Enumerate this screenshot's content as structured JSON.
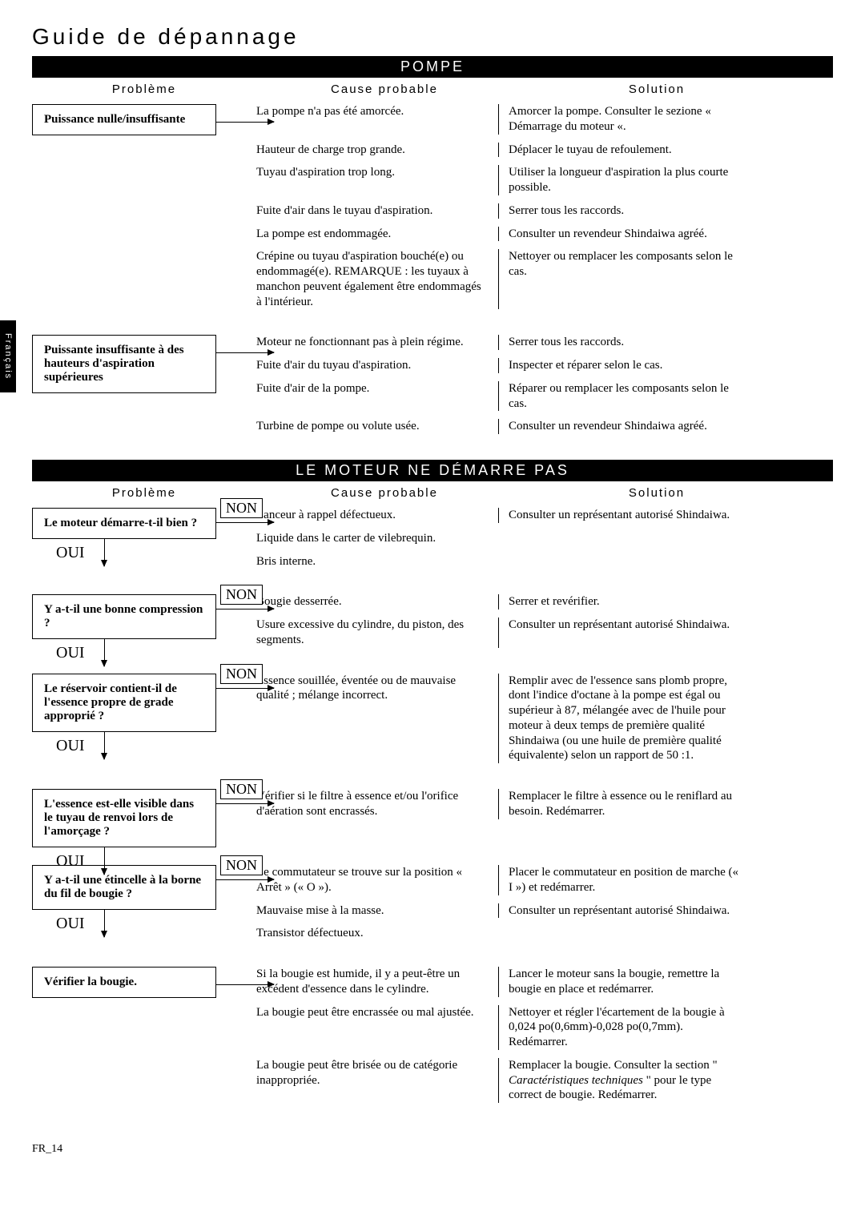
{
  "title": "Guide de dépannage",
  "sideTab": "Français",
  "footer": "FR_14",
  "labels": {
    "oui": "OUI",
    "non": "NON"
  },
  "headers": {
    "problem": "Problème",
    "cause": "Cause probable",
    "solution": "Solution"
  },
  "sections": [
    {
      "title": "POMPE",
      "groups": [
        {
          "problem": "Puissance nulle/insuffisante",
          "flow": false,
          "rows": [
            {
              "cause": "La pompe n'a pas été amorcée.",
              "solution": "Amorcer la pompe. Consulter le sezione « Démarrage du moteur «."
            },
            {
              "cause": "Hauteur de charge trop grande.",
              "solution": "Déplacer le tuyau de refoulement."
            },
            {
              "cause": "Tuyau d'aspiration trop long.",
              "solution": "Utiliser la longueur d'aspiration la plus courte possible."
            },
            {
              "cause": "Fuite d'air dans le tuyau d'aspiration.",
              "solution": "Serrer tous les raccords."
            },
            {
              "cause": "La pompe est endommagée.",
              "solution": "Consulter un revendeur Shindaiwa agréé."
            },
            {
              "cause": "Crépine ou tuyau d'aspiration bouché(e) ou endommagé(e). REMARQUE : les tuyaux à manchon peuvent également être endommagés à l'intérieur.",
              "solution": "Nettoyer ou remplacer les composants selon le cas."
            }
          ]
        },
        {
          "problem": "Puissante insuffisante à des hauteurs d'aspiration supérieures",
          "flow": false,
          "rows": [
            {
              "cause": "Moteur ne fonctionnant pas à plein régime.",
              "solution": "Serrer tous les raccords."
            },
            {
              "cause": "Fuite d'air du tuyau d'aspiration.",
              "solution": "Inspecter et réparer selon le cas."
            },
            {
              "cause": "Fuite d'air de la pompe.",
              "solution": "Réparer ou remplacer les composants selon le cas."
            },
            {
              "cause": "Turbine de pompe ou volute usée.",
              "solution": "Consulter un revendeur Shindaiwa agréé."
            }
          ]
        }
      ]
    },
    {
      "title": "LE MOTEUR NE DÉMARRE PAS",
      "groups": [
        {
          "problem": "Le moteur démarre-t-il bien ?",
          "flow": true,
          "rows": [
            {
              "cause": "Lanceur à rappel défectueux.",
              "solution": "Consulter un représentant autorisé Shindaiwa."
            },
            {
              "cause": "Liquide dans le carter de vilebrequin.",
              "solution": ""
            },
            {
              "cause": "Bris interne.",
              "solution": ""
            }
          ]
        },
        {
          "problem": "Y a-t-il une bonne compression ?",
          "flow": true,
          "rows": [
            {
              "cause": "Bougie desserrée.",
              "solution": "Serrer et revérifier."
            },
            {
              "cause": "Usure excessive du cylindre, du piston, des segments.",
              "solution": "Consulter un représentant autorisé Shindaiwa."
            }
          ]
        },
        {
          "problem": "Le réservoir contient-il de l'essence propre de grade approprié ?",
          "flow": true,
          "rows": [
            {
              "cause": "Essence souillée, éventée ou de mauvaise qualité ; mélange incorrect.",
              "solution": "Remplir avec de l'essence sans plomb propre, dont l'indice d'octane à la pompe est égal ou supérieur à 87, mélangée avec de l'huile pour moteur à deux temps de première qualité Shindaiwa (ou une huile de première qualité équivalente) selon un rapport de 50 :1."
            }
          ]
        },
        {
          "problem": "L'essence est-elle visible dans le tuyau de renvoi lors de l'amorçage ?",
          "flow": true,
          "rows": [
            {
              "cause": "Vérifier si le filtre à essence et/ou l'orifice d'aération sont encrassés.",
              "solution": "Remplacer le filtre à essence ou le reniflard au besoin. Redémarrer."
            }
          ]
        },
        {
          "problem": "Y a-t-il une étincelle à la borne du fil de bougie ?",
          "flow": true,
          "rows": [
            {
              "cause": "Le commutateur se trouve sur la position « Arrêt » (« O »).",
              "solution": "Placer le commutateur en position de marche (« I ») et redémarrer."
            },
            {
              "cause": "Mauvaise mise à la masse.",
              "solution": "Consulter un représentant autorisé Shindaiwa."
            },
            {
              "cause": "Transistor défectueux.",
              "solution": ""
            }
          ]
        },
        {
          "problem": "Vérifier la bougie.",
          "flow": false,
          "rows": [
            {
              "cause": "Si la bougie est humide, il y a peut-être un excédent d'essence dans le cylindre.",
              "solution": "Lancer le moteur sans la bougie, remettre la bougie en place et redémarrer."
            },
            {
              "cause": "La bougie peut être encrassée ou mal ajustée.",
              "solution": "Nettoyer et régler l'écartement de la bougie à 0,024 po(0,6mm)-0,028 po(0,7mm). Redémarrer."
            },
            {
              "cause": "La bougie peut être brisée ou de catégorie inappropriée.",
              "solution": "Remplacer la bougie. Consulter la section \" Caractéristiques techniques \" pour le type correct de bougie. Redémarrer."
            }
          ]
        }
      ]
    }
  ]
}
